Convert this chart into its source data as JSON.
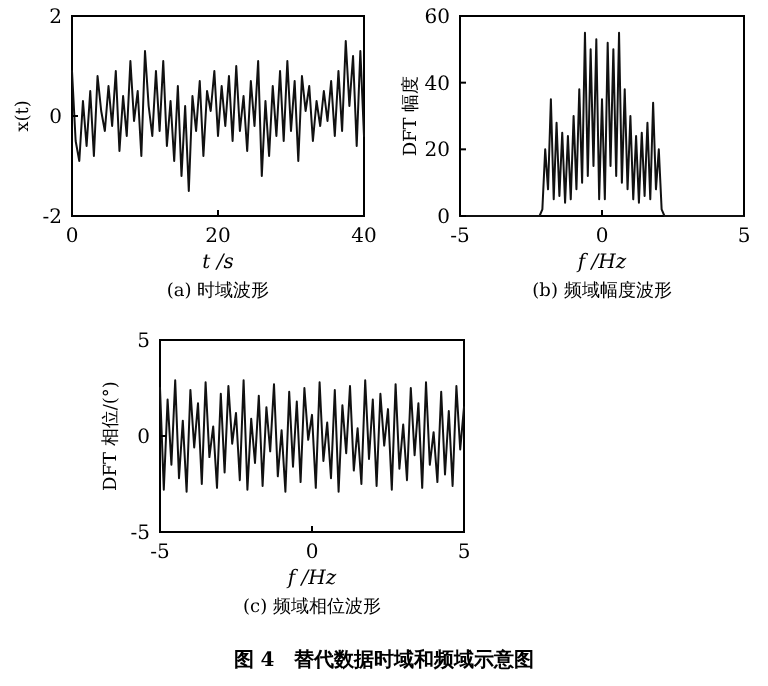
{
  "chart_data": [
    {
      "type": "line",
      "title": "(a) 时域波形",
      "xlabel": "t /s",
      "ylabel": "x(t)",
      "xlim": [
        0,
        40
      ],
      "ylim": [
        -2,
        2
      ],
      "xticks": [
        0,
        20,
        40
      ],
      "yticks": [
        -2,
        0,
        2
      ],
      "x": [
        0,
        0.5,
        1,
        1.5,
        2,
        2.5,
        3,
        3.5,
        4,
        4.5,
        5,
        5.5,
        6,
        6.5,
        7,
        7.5,
        8,
        8.5,
        9,
        9.5,
        10,
        10.5,
        11,
        11.5,
        12,
        12.5,
        13,
        13.5,
        14,
        14.5,
        15,
        15.5,
        16,
        16.5,
        17,
        17.5,
        18,
        18.5,
        19,
        19.5,
        20,
        20.5,
        21,
        21.5,
        22,
        22.5,
        23,
        23.5,
        24,
        24.5,
        25,
        25.5,
        26,
        26.5,
        27,
        27.5,
        28,
        28.5,
        29,
        29.5,
        30,
        30.5,
        31,
        31.5,
        32,
        32.5,
        33,
        33.5,
        34,
        34.5,
        35,
        35.5,
        36,
        36.5,
        37,
        37.5,
        38,
        38.5,
        39,
        39.5,
        40
      ],
      "series": [
        {
          "color": "#111111",
          "values": [
            0.9,
            -0.5,
            -0.9,
            0.3,
            -0.6,
            0.5,
            -0.8,
            0.8,
            0.1,
            -0.3,
            0.6,
            -0.2,
            0.9,
            -0.7,
            0.4,
            -0.4,
            1.1,
            -0.1,
            0.5,
            -0.8,
            1.3,
            0.2,
            -0.4,
            0.9,
            -0.3,
            1.1,
            -0.6,
            0.3,
            -0.9,
            0.6,
            -1.2,
            0.2,
            -1.5,
            0.4,
            -0.3,
            0.7,
            -0.8,
            0.5,
            0.1,
            0.9,
            -0.4,
            0.6,
            -0.2,
            0.8,
            -0.5,
            1.0,
            -0.3,
            0.4,
            -0.7,
            0.7,
            -0.2,
            1.1,
            -1.2,
            0.3,
            -0.8,
            0.6,
            -0.4,
            0.9,
            -0.5,
            1.1,
            -0.3,
            0.7,
            -0.9,
            0.8,
            0.1,
            0.6,
            -0.5,
            0.3,
            -0.2,
            0.5,
            -0.1,
            0.7,
            -0.4,
            0.9,
            -0.3,
            1.5,
            0.2,
            1.2,
            -0.6,
            1.3,
            -0.4
          ]
        }
      ]
    },
    {
      "type": "line",
      "title": "(b) 频域幅度波形",
      "xlabel": "f /Hz",
      "ylabel": "DFT 幅度",
      "xlim": [
        -5,
        5
      ],
      "ylim": [
        0,
        60
      ],
      "xticks": [
        -5,
        0,
        5
      ],
      "yticks": [
        0,
        20,
        40,
        60
      ],
      "x": [
        -5,
        -2.2,
        -2.1,
        -2,
        -1.9,
        -1.8,
        -1.7,
        -1.6,
        -1.5,
        -1.4,
        -1.3,
        -1.2,
        -1.1,
        -1,
        -0.9,
        -0.8,
        -0.7,
        -0.6,
        -0.5,
        -0.4,
        -0.3,
        -0.2,
        -0.1,
        0,
        0.1,
        0.2,
        0.3,
        0.4,
        0.5,
        0.6,
        0.7,
        0.8,
        0.9,
        1,
        1.1,
        1.2,
        1.3,
        1.4,
        1.5,
        1.6,
        1.7,
        1.8,
        1.9,
        2,
        2.1,
        2.2,
        5
      ],
      "series": [
        {
          "color": "#111111",
          "values": [
            0,
            0,
            2,
            20,
            8,
            35,
            5,
            28,
            6,
            25,
            4,
            24,
            5,
            30,
            8,
            38,
            10,
            55,
            12,
            50,
            15,
            53,
            5,
            35,
            5,
            52,
            15,
            50,
            12,
            55,
            10,
            38,
            8,
            30,
            5,
            24,
            4,
            25,
            6,
            28,
            5,
            34,
            8,
            20,
            2,
            0,
            0
          ]
        }
      ]
    },
    {
      "type": "line",
      "title": "(c) 频域相位波形",
      "xlabel": "f /Hz",
      "ylabel": "DFT 相位/(°)",
      "xlim": [
        -5,
        5
      ],
      "ylim": [
        -5,
        5
      ],
      "xticks": [
        -5,
        0,
        5
      ],
      "yticks": [
        -5,
        0,
        5
      ],
      "annotations": [
        "图 4　替代数据时域和频域示意图"
      ],
      "x": [
        -5,
        -4.875,
        -4.75,
        -4.625,
        -4.5,
        -4.375,
        -4.25,
        -4.125,
        -4,
        -3.875,
        -3.75,
        -3.625,
        -3.5,
        -3.375,
        -3.25,
        -3.125,
        -3,
        -2.875,
        -2.75,
        -2.625,
        -2.5,
        -2.375,
        -2.25,
        -2.125,
        -2,
        -1.875,
        -1.75,
        -1.625,
        -1.5,
        -1.375,
        -1.25,
        -1.125,
        -1,
        -0.875,
        -0.75,
        -0.625,
        -0.5,
        -0.375,
        -0.25,
        -0.125,
        0,
        0.125,
        0.25,
        0.375,
        0.5,
        0.625,
        0.75,
        0.875,
        1,
        1.125,
        1.25,
        1.375,
        1.5,
        1.625,
        1.75,
        1.875,
        2,
        2.125,
        2.25,
        2.375,
        2.5,
        2.625,
        2.75,
        2.875,
        3,
        3.125,
        3.25,
        3.375,
        3.5,
        3.625,
        3.75,
        3.875,
        4,
        4.125,
        4.25,
        4.375,
        4.5,
        4.625,
        4.75,
        4.875,
        5
      ],
      "series": [
        {
          "color": "#111111",
          "values": [
            2.5,
            -2.8,
            1.9,
            -1.5,
            2.9,
            -2.2,
            0.8,
            -2.9,
            2.4,
            -0.6,
            1.7,
            -2.5,
            2.8,
            -1.1,
            0.5,
            -2.7,
            2.2,
            -1.9,
            2.6,
            -0.4,
            1.2,
            -2.3,
            2.9,
            -2.8,
            0.9,
            -1.4,
            2.1,
            -2.6,
            1.5,
            -0.8,
            2.7,
            -2.1,
            0.3,
            -2.9,
            2.3,
            -1.6,
            1.8,
            -2.4,
            2.5,
            -0.2,
            1.1,
            -2.7,
            2.8,
            -1.3,
            0.7,
            -2.2,
            2.4,
            -2.9,
            1.6,
            -0.9,
            2.6,
            -1.8,
            0.4,
            -2.5,
            2.9,
            -1.2,
            1.9,
            -2.6,
            2.2,
            -0.5,
            1.4,
            -2.8,
            2.7,
            -1.7,
            0.6,
            -2.3,
            2.5,
            -1.0,
            1.7,
            -2.7,
            2.8,
            -1.5,
            0.2,
            -2.4,
            2.3,
            -2.0,
            1.3,
            -2.6,
            2.6,
            -0.7,
            1.5
          ]
        }
      ]
    }
  ]
}
